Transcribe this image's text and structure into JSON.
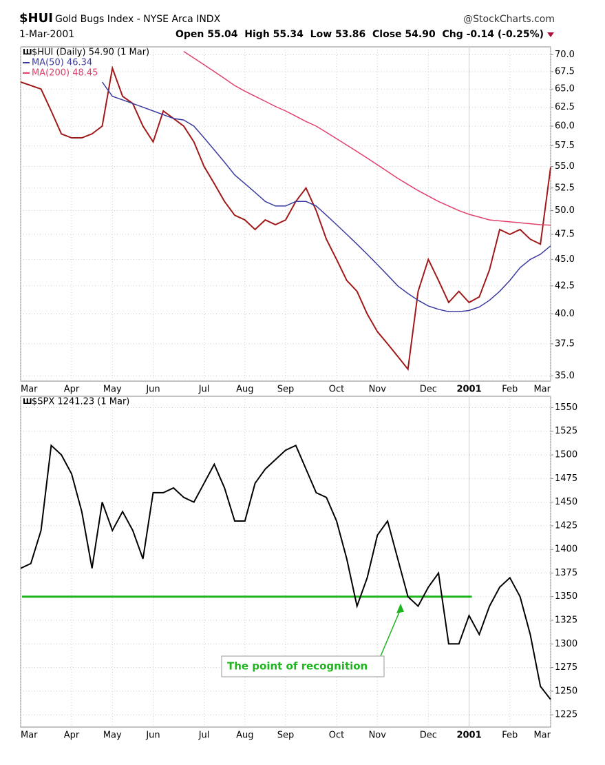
{
  "header": {
    "symbol": "$HUI",
    "name": "Gold Bugs Index - NYSE Arca INDX",
    "source": "@StockCharts.com",
    "date": "1-Mar-2001",
    "quote": "Open 55.04  High 55.34  Low 53.86  Close 54.90  Chg -0.14 (-0.25%)"
  },
  "chart_data": [
    {
      "type": "line",
      "log_scale": true,
      "grid": true,
      "categories": [
        "Mar",
        null,
        null,
        null,
        null,
        "Apr",
        null,
        null,
        null,
        "May",
        null,
        null,
        null,
        "Jun",
        null,
        null,
        null,
        null,
        "Jul",
        null,
        null,
        null,
        "Aug",
        null,
        null,
        null,
        "Sep",
        null,
        null,
        null,
        null,
        "Oct",
        null,
        null,
        null,
        "Nov",
        null,
        null,
        null,
        null,
        "Dec",
        null,
        null,
        null,
        "2001",
        null,
        null,
        null,
        "Feb",
        null,
        null,
        null,
        "Mar"
      ],
      "series": [
        {
          "name": "$HUI (Daily) 54.90 (1 Mar)",
          "color": "#a01818",
          "values": [
            66,
            65.5,
            65,
            62,
            59,
            58.5,
            58.5,
            59,
            60,
            68,
            64,
            63,
            60,
            58,
            62,
            61,
            60,
            58,
            55,
            53,
            51,
            49.5,
            49,
            48,
            49,
            48.5,
            49,
            51,
            52.5,
            50,
            47,
            45,
            43,
            42,
            40,
            38.5,
            37.5,
            36.5,
            35.5,
            42,
            45,
            43,
            41,
            42,
            41,
            41.5,
            44,
            48,
            47.5,
            48,
            47,
            46.5,
            54.9
          ]
        },
        {
          "name": "MA(50) 46.34",
          "color": "#3a3aa0",
          "values": [
            null,
            null,
            null,
            null,
            null,
            null,
            null,
            null,
            66,
            64,
            63.5,
            63,
            62.5,
            62,
            61.5,
            61,
            60.8,
            60,
            58.5,
            57,
            55.5,
            54,
            53,
            52,
            51,
            50.5,
            50.5,
            51,
            51,
            50.5,
            49.5,
            48.5,
            47.5,
            46.5,
            45.5,
            44.5,
            43.5,
            42.5,
            41.8,
            41.2,
            40.7,
            40.4,
            40.2,
            40.2,
            40.3,
            40.6,
            41.2,
            42,
            43,
            44.2,
            45,
            45.5,
            46.34
          ]
        },
        {
          "name": "MA(200) 48.45",
          "color": "#e0406a",
          "values": [
            null,
            null,
            null,
            null,
            null,
            null,
            null,
            null,
            null,
            null,
            null,
            null,
            null,
            null,
            null,
            null,
            70.5,
            69.5,
            68.5,
            67.5,
            66.5,
            65.5,
            64.7,
            64,
            63.3,
            62.6,
            62,
            61.3,
            60.6,
            60,
            59.2,
            58.4,
            57.6,
            56.8,
            56,
            55.2,
            54.4,
            53.6,
            52.9,
            52.2,
            51.6,
            51,
            50.5,
            50,
            49.6,
            49.3,
            49,
            48.9,
            48.8,
            48.7,
            48.6,
            48.5,
            48.45
          ]
        }
      ],
      "ylim": [
        34.6,
        71.2
      ],
      "yticks": [
        {
          "value": 35,
          "label": "35.0"
        },
        {
          "value": 37.5,
          "label": "37.5"
        },
        {
          "value": 40,
          "label": "40.0"
        },
        {
          "value": 42.5,
          "label": "42.5"
        },
        {
          "value": 45,
          "label": "45.0"
        },
        {
          "value": 47.5,
          "label": "47.5"
        },
        {
          "value": 50,
          "label": "50.0"
        },
        {
          "value": 52.5,
          "label": "52.5"
        },
        {
          "value": 55,
          "label": "55.0"
        },
        {
          "value": 57.5,
          "label": "57.5"
        },
        {
          "value": 60,
          "label": "60.0"
        },
        {
          "value": 62.5,
          "label": "62.5"
        },
        {
          "value": 65,
          "label": "65.0"
        },
        {
          "value": 67.5,
          "label": "67.5"
        },
        {
          "value": 70,
          "label": "70.0"
        }
      ]
    },
    {
      "type": "line",
      "log_scale": false,
      "grid": true,
      "categories": [
        "Mar",
        null,
        null,
        null,
        null,
        "Apr",
        null,
        null,
        null,
        "May",
        null,
        null,
        null,
        "Jun",
        null,
        null,
        null,
        null,
        "Jul",
        null,
        null,
        null,
        "Aug",
        null,
        null,
        null,
        "Sep",
        null,
        null,
        null,
        null,
        "Oct",
        null,
        null,
        null,
        "Nov",
        null,
        null,
        null,
        null,
        "Dec",
        null,
        null,
        null,
        "2001",
        null,
        null,
        null,
        "Feb",
        null,
        null,
        null,
        "Mar"
      ],
      "series": [
        {
          "name": "$SPX 1241.23 (1 Mar)",
          "color": "#000000",
          "values": [
            1380,
            1385,
            1420,
            1510,
            1500,
            1480,
            1440,
            1380,
            1450,
            1420,
            1440,
            1420,
            1390,
            1460,
            1460,
            1465,
            1455,
            1450,
            1470,
            1490,
            1465,
            1430,
            1430,
            1470,
            1485,
            1495,
            1505,
            1510,
            1485,
            1460,
            1455,
            1430,
            1390,
            1340,
            1370,
            1415,
            1430,
            1390,
            1350,
            1340,
            1360,
            1375,
            1300,
            1300,
            1330,
            1310,
            1340,
            1360,
            1370,
            1350,
            1310,
            1255,
            1241.23
          ]
        }
      ],
      "reference_line": {
        "value": 1350,
        "color": "#1db41d"
      },
      "annotation": "The point of recognition",
      "ylim": [
        1212,
        1562
      ],
      "yticks": [
        1225,
        1250,
        1275,
        1300,
        1325,
        1350,
        1375,
        1400,
        1425,
        1450,
        1475,
        1500,
        1525,
        1550
      ]
    }
  ]
}
